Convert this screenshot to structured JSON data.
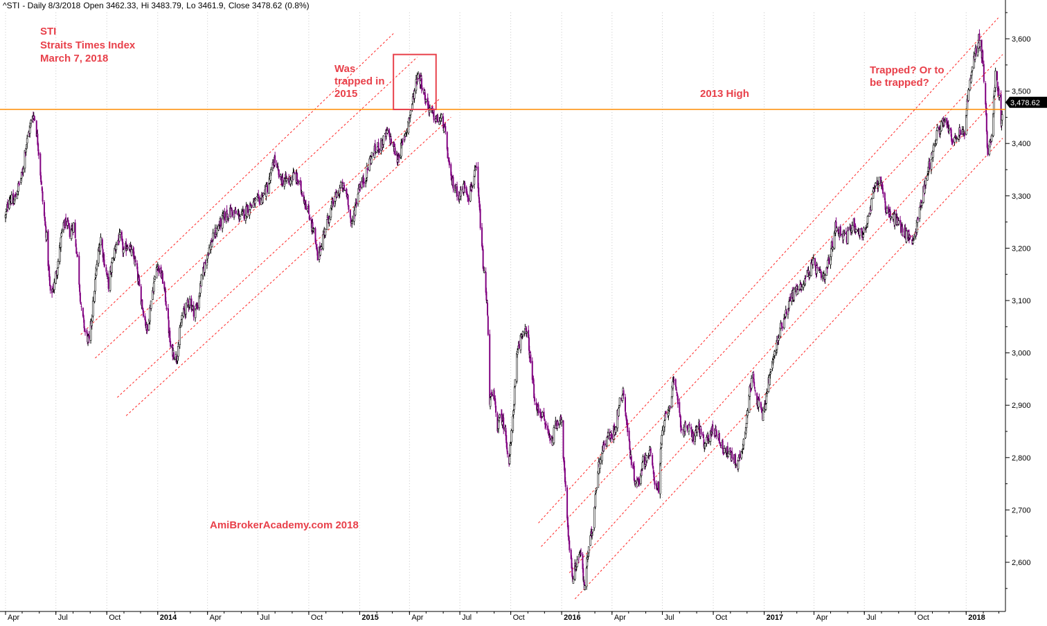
{
  "header": {
    "symbol": "^STI",
    "title_text": "- Daily 8/3/2018",
    "open_text": "Open 3462.33,",
    "high_text": "Hi 3483.79,",
    "low_text": "Lo 3461.9,",
    "close_text": "Close 3478.62",
    "change_text": "(0.8%)"
  },
  "annotations": {
    "title_line1": "STI",
    "title_line2": "Straits Times Index",
    "title_line3": "March 7, 2018",
    "trapped_2015": "Was\ntrapped in\n2015",
    "high_2013": "2013 High",
    "trapped_question": "Trapped? Or to\nbe trapped?",
    "watermark": "AmiBrokerAcademy.com  2018"
  },
  "colors": {
    "bull_candle": "#000000",
    "bear_candle": "#800080",
    "resistance_line": "#ff8c00",
    "channel_lines": "#ff2020",
    "annotation_text": "#e8404a",
    "highlight_box": "#e8404a",
    "grid": "#c8c8c8",
    "last_price_badge": "#000000"
  },
  "chart_data": {
    "type": "candlestick",
    "title": "^STI - Daily 8/3/2018 Open 3462.33, Hi 3483.79, Lo 3461.9, Close 3478.62 (0.8%)",
    "x_axis": {
      "tick_labels": [
        "Apr",
        "Jul",
        "Oct",
        "2014",
        "Apr",
        "Jul",
        "Oct",
        "2015",
        "Apr",
        "Jul",
        "Oct",
        "2016",
        "Apr",
        "Jul",
        "Oct",
        "2017",
        "Apr",
        "Jul",
        "Oct",
        "2018"
      ],
      "year_labels": [
        "2014",
        "2015",
        "2016",
        "2017",
        "2018"
      ],
      "range": [
        "2013-04-01",
        "2018-03-08"
      ]
    },
    "y_axis": {
      "position": "right",
      "range": [
        2515,
        3660
      ],
      "ticks": [
        2600,
        2700,
        2800,
        2900,
        3000,
        3100,
        3200,
        3300,
        3400,
        3500,
        3600
      ],
      "tick_labels": [
        "2,600",
        "2,700",
        "2,800",
        "2,900",
        "3,000",
        "3,100",
        "3,200",
        "3,300",
        "3,400",
        "3,500",
        "3,600"
      ]
    },
    "grid": "vertical-dotted",
    "last_close": 3478.62,
    "last_close_label": "3,478.62",
    "resistance_2013_high": 3465,
    "highlight_box": {
      "x": [
        "2015-03-03",
        "2015-05-19"
      ],
      "y": [
        3465,
        3570
      ]
    },
    "channel_lines": [
      {
        "segment": "2013-2015",
        "points": [
          [
            "2013-08-15",
            3035
          ],
          [
            "2015-03-03",
            3610
          ]
        ]
      },
      {
        "segment": "2013-2015",
        "points": [
          [
            "2013-09-10",
            2990
          ],
          [
            "2015-04-15",
            3565
          ]
        ]
      },
      {
        "segment": "2013-2015",
        "points": [
          [
            "2013-10-20",
            2915
          ],
          [
            "2015-05-25",
            3485
          ]
        ]
      },
      {
        "segment": "2013-2015",
        "points": [
          [
            "2013-11-05",
            2880
          ],
          [
            "2015-06-15",
            3450
          ]
        ]
      },
      {
        "segment": "2016-2018",
        "points": [
          [
            "2015-11-20",
            2675
          ],
          [
            "2018-02-28",
            3640
          ]
        ]
      },
      {
        "segment": "2016-2018",
        "points": [
          [
            "2015-11-25",
            2630
          ],
          [
            "2018-03-08",
            3570
          ]
        ]
      },
      {
        "segment": "2016-2018",
        "points": [
          [
            "2016-01-15",
            2580
          ],
          [
            "2018-03-08",
            3500
          ]
        ]
      },
      {
        "segment": "2016-2018",
        "points": [
          [
            "2016-01-25",
            2530
          ],
          [
            "2018-03-08",
            3410
          ]
        ]
      }
    ],
    "series": [
      {
        "kind": "close_path",
        "points": [
          [
            "2013-04-01",
            3260
          ],
          [
            "2013-04-08",
            3300
          ],
          [
            "2013-04-15",
            3285
          ],
          [
            "2013-04-22",
            3310
          ],
          [
            "2013-05-01",
            3340
          ],
          [
            "2013-05-06",
            3385
          ],
          [
            "2013-05-13",
            3420
          ],
          [
            "2013-05-20",
            3455
          ],
          [
            "2013-05-24",
            3450
          ],
          [
            "2013-05-31",
            3385
          ],
          [
            "2013-06-07",
            3290
          ],
          [
            "2013-06-14",
            3220
          ],
          [
            "2013-06-21",
            3110
          ],
          [
            "2013-06-28",
            3130
          ],
          [
            "2013-07-05",
            3175
          ],
          [
            "2013-07-12",
            3230
          ],
          [
            "2013-07-19",
            3250
          ],
          [
            "2013-07-26",
            3230
          ],
          [
            "2013-08-02",
            3245
          ],
          [
            "2013-08-09",
            3180
          ],
          [
            "2013-08-16",
            3080
          ],
          [
            "2013-08-23",
            3040
          ],
          [
            "2013-08-30",
            3020
          ],
          [
            "2013-09-06",
            3090
          ],
          [
            "2013-09-13",
            3170
          ],
          [
            "2013-09-20",
            3220
          ],
          [
            "2013-09-27",
            3170
          ],
          [
            "2013-10-04",
            3130
          ],
          [
            "2013-10-11",
            3175
          ],
          [
            "2013-10-18",
            3210
          ],
          [
            "2013-10-25",
            3220
          ],
          [
            "2013-11-01",
            3190
          ],
          [
            "2013-11-08",
            3210
          ],
          [
            "2013-11-15",
            3190
          ],
          [
            "2013-11-22",
            3170
          ],
          [
            "2013-12-01",
            3110
          ],
          [
            "2013-12-06",
            3080
          ],
          [
            "2013-12-13",
            3040
          ],
          [
            "2013-12-20",
            3100
          ],
          [
            "2013-12-31",
            3170
          ],
          [
            "2014-01-10",
            3140
          ],
          [
            "2014-01-17",
            3090
          ],
          [
            "2014-01-24",
            3010
          ],
          [
            "2014-02-04",
            2990
          ],
          [
            "2014-02-14",
            3070
          ],
          [
            "2014-02-28",
            3100
          ],
          [
            "2014-03-07",
            3080
          ],
          [
            "2014-03-14",
            3090
          ],
          [
            "2014-03-21",
            3140
          ],
          [
            "2014-04-01",
            3190
          ],
          [
            "2014-04-15",
            3230
          ],
          [
            "2014-05-01",
            3260
          ],
          [
            "2014-05-15",
            3270
          ],
          [
            "2014-06-01",
            3260
          ],
          [
            "2014-06-15",
            3280
          ],
          [
            "2014-07-01",
            3290
          ],
          [
            "2014-07-10",
            3300
          ],
          [
            "2014-07-20",
            3320
          ],
          [
            "2014-07-31",
            3370
          ],
          [
            "2014-08-10",
            3330
          ],
          [
            "2014-08-25",
            3330
          ],
          [
            "2014-09-05",
            3340
          ],
          [
            "2014-09-15",
            3320
          ],
          [
            "2014-09-30",
            3270
          ],
          [
            "2014-10-10",
            3230
          ],
          [
            "2014-10-17",
            3180
          ],
          [
            "2014-10-31",
            3240
          ],
          [
            "2014-11-15",
            3290
          ],
          [
            "2014-11-30",
            3320
          ],
          [
            "2014-12-10",
            3300
          ],
          [
            "2014-12-17",
            3240
          ],
          [
            "2014-12-31",
            3320
          ],
          [
            "2015-01-10",
            3330
          ],
          [
            "2015-01-20",
            3370
          ],
          [
            "2015-01-31",
            3390
          ],
          [
            "2015-02-10",
            3400
          ],
          [
            "2015-02-20",
            3420
          ],
          [
            "2015-03-01",
            3400
          ],
          [
            "2015-03-10",
            3370
          ],
          [
            "2015-03-20",
            3400
          ],
          [
            "2015-04-01",
            3450
          ],
          [
            "2015-04-10",
            3500
          ],
          [
            "2015-04-15",
            3530
          ],
          [
            "2015-04-22",
            3520
          ],
          [
            "2015-05-01",
            3480
          ],
          [
            "2015-05-10",
            3460
          ],
          [
            "2015-05-20",
            3445
          ],
          [
            "2015-05-31",
            3445
          ],
          [
            "2015-06-07",
            3400
          ],
          [
            "2015-06-14",
            3330
          ],
          [
            "2015-06-21",
            3320
          ],
          [
            "2015-06-30",
            3300
          ],
          [
            "2015-07-10",
            3320
          ],
          [
            "2015-07-17",
            3300
          ],
          [
            "2015-07-31",
            3350
          ],
          [
            "2015-08-05",
            3280
          ],
          [
            "2015-08-12",
            3170
          ],
          [
            "2015-08-20",
            3080
          ],
          [
            "2015-08-24",
            2910
          ],
          [
            "2015-08-31",
            2920
          ],
          [
            "2015-09-07",
            2860
          ],
          [
            "2015-09-14",
            2880
          ],
          [
            "2015-09-21",
            2850
          ],
          [
            "2015-09-28",
            2790
          ],
          [
            "2015-10-05",
            2880
          ],
          [
            "2015-10-12",
            2990
          ],
          [
            "2015-10-19",
            3030
          ],
          [
            "2015-10-26",
            3050
          ],
          [
            "2015-11-02",
            3020
          ],
          [
            "2015-11-09",
            2950
          ],
          [
            "2015-11-16",
            2890
          ],
          [
            "2015-11-23",
            2890
          ],
          [
            "2015-11-30",
            2870
          ],
          [
            "2015-12-07",
            2850
          ],
          [
            "2015-12-14",
            2830
          ],
          [
            "2015-12-21",
            2860
          ],
          [
            "2015-12-31",
            2880
          ],
          [
            "2016-01-07",
            2750
          ],
          [
            "2016-01-14",
            2640
          ],
          [
            "2016-01-21",
            2570
          ],
          [
            "2016-01-28",
            2600
          ],
          [
            "2016-02-04",
            2620
          ],
          [
            "2016-02-11",
            2550
          ],
          [
            "2016-02-18",
            2620
          ],
          [
            "2016-02-25",
            2660
          ],
          [
            "2016-03-03",
            2740
          ],
          [
            "2016-03-10",
            2800
          ],
          [
            "2016-03-17",
            2820
          ],
          [
            "2016-03-24",
            2840
          ],
          [
            "2016-03-31",
            2840
          ],
          [
            "2016-04-07",
            2860
          ],
          [
            "2016-04-14",
            2900
          ],
          [
            "2016-04-21",
            2930
          ],
          [
            "2016-04-28",
            2860
          ],
          [
            "2016-05-05",
            2800
          ],
          [
            "2016-05-12",
            2760
          ],
          [
            "2016-05-19",
            2750
          ],
          [
            "2016-05-26",
            2790
          ],
          [
            "2016-06-02",
            2800
          ],
          [
            "2016-06-09",
            2810
          ],
          [
            "2016-06-16",
            2760
          ],
          [
            "2016-06-24",
            2740
          ],
          [
            "2016-06-30",
            2840
          ],
          [
            "2016-07-07",
            2880
          ],
          [
            "2016-07-14",
            2900
          ],
          [
            "2016-07-21",
            2940
          ],
          [
            "2016-07-28",
            2920
          ],
          [
            "2016-08-05",
            2850
          ],
          [
            "2016-08-15",
            2860
          ],
          [
            "2016-08-25",
            2840
          ],
          [
            "2016-09-05",
            2860
          ],
          [
            "2016-09-15",
            2820
          ],
          [
            "2016-09-26",
            2850
          ],
          [
            "2016-10-07",
            2850
          ],
          [
            "2016-10-17",
            2820
          ],
          [
            "2016-10-28",
            2810
          ],
          [
            "2016-11-05",
            2800
          ],
          [
            "2016-11-15",
            2790
          ],
          [
            "2016-11-25",
            2830
          ],
          [
            "2016-12-05",
            2920
          ],
          [
            "2016-12-12",
            2960
          ],
          [
            "2016-12-19",
            2910
          ],
          [
            "2016-12-30",
            2880
          ],
          [
            "2017-01-10",
            2950
          ],
          [
            "2017-01-20",
            3000
          ],
          [
            "2017-01-31",
            3050
          ],
          [
            "2017-02-10",
            3080
          ],
          [
            "2017-02-20",
            3110
          ],
          [
            "2017-03-01",
            3120
          ],
          [
            "2017-03-10",
            3130
          ],
          [
            "2017-03-20",
            3150
          ],
          [
            "2017-03-31",
            3170
          ],
          [
            "2017-04-10",
            3150
          ],
          [
            "2017-04-20",
            3140
          ],
          [
            "2017-05-01",
            3190
          ],
          [
            "2017-05-10",
            3240
          ],
          [
            "2017-05-20",
            3230
          ],
          [
            "2017-05-31",
            3220
          ],
          [
            "2017-06-10",
            3250
          ],
          [
            "2017-06-20",
            3230
          ],
          [
            "2017-06-30",
            3230
          ],
          [
            "2017-07-10",
            3260
          ],
          [
            "2017-07-20",
            3320
          ],
          [
            "2017-07-31",
            3330
          ],
          [
            "2017-08-10",
            3270
          ],
          [
            "2017-08-20",
            3260
          ],
          [
            "2017-08-31",
            3250
          ],
          [
            "2017-09-10",
            3230
          ],
          [
            "2017-09-20",
            3220
          ],
          [
            "2017-09-30",
            3220
          ],
          [
            "2017-10-10",
            3280
          ],
          [
            "2017-10-20",
            3330
          ],
          [
            "2017-10-31",
            3380
          ],
          [
            "2017-11-10",
            3420
          ],
          [
            "2017-11-20",
            3440
          ],
          [
            "2017-11-30",
            3430
          ],
          [
            "2017-12-10",
            3400
          ],
          [
            "2017-12-20",
            3420
          ],
          [
            "2017-12-29",
            3420
          ],
          [
            "2018-01-05",
            3500
          ],
          [
            "2018-01-12",
            3540
          ],
          [
            "2018-01-19",
            3580
          ],
          [
            "2018-01-24",
            3600
          ],
          [
            "2018-01-31",
            3560
          ],
          [
            "2018-02-06",
            3450
          ],
          [
            "2018-02-09",
            3370
          ],
          [
            "2018-02-16",
            3420
          ],
          [
            "2018-02-23",
            3530
          ],
          [
            "2018-03-01",
            3500
          ],
          [
            "2018-03-05",
            3440
          ],
          [
            "2018-03-08",
            3478.62
          ]
        ]
      }
    ]
  }
}
